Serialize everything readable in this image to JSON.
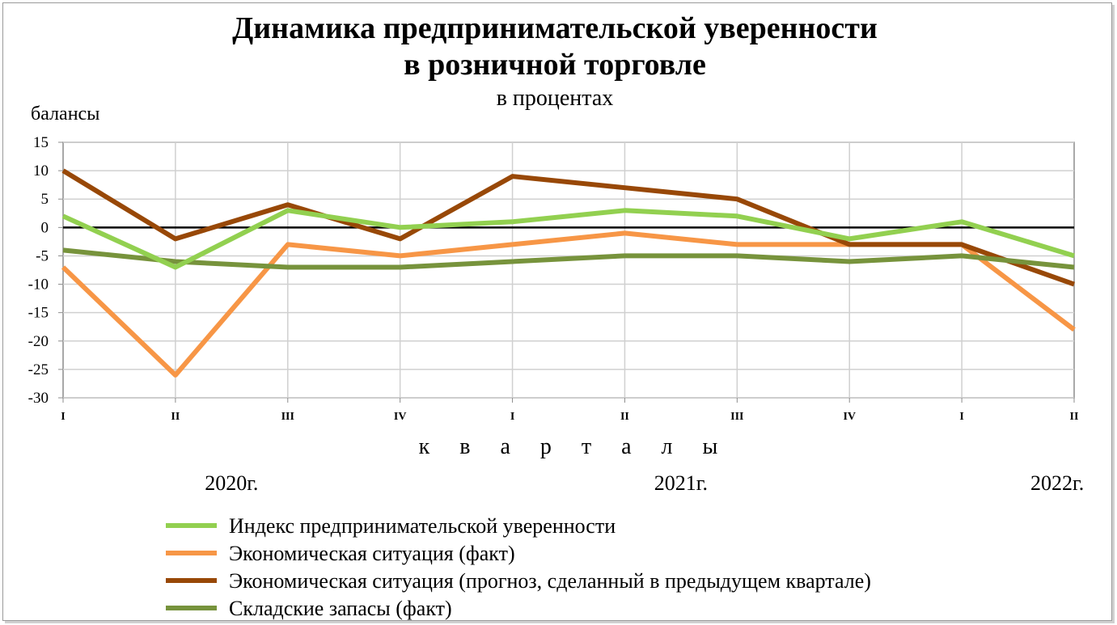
{
  "chart_data": {
    "type": "line",
    "title_line1": "Динамика предпринимательской уверенности",
    "title_line2": "в розничной торговле",
    "subtitle": "в процентах",
    "ylabel": "балансы",
    "xlabel": "к в а р т а л ы",
    "ylim": [
      -30,
      15
    ],
    "yticks": [
      15,
      10,
      5,
      0,
      -5,
      -10,
      -15,
      -20,
      -25,
      -30
    ],
    "categories": [
      "I",
      "II",
      "III",
      "IV",
      "I",
      "II",
      "III",
      "IV",
      "I",
      "II"
    ],
    "year_labels": [
      {
        "label": "2020г.",
        "center_index": 1.5
      },
      {
        "label": "2021г.",
        "center_index": 5.5
      },
      {
        "label": "2022г.",
        "center_index": 8.85
      }
    ],
    "grid": true,
    "legend_position": "bottom",
    "series": [
      {
        "name": "Индекс предпринимательской уверенности",
        "color": "#92d050",
        "values": [
          2,
          -7,
          3,
          0,
          1,
          3,
          2,
          -2,
          1,
          -5
        ]
      },
      {
        "name": "Экономическая ситуация (факт)",
        "color": "#f79646",
        "values": [
          -7,
          -26,
          -3,
          -5,
          -3,
          -1,
          -3,
          -3,
          -3,
          -18
        ]
      },
      {
        "name": "Экономическая ситуация (прогноз, сделанный в предыдущем квартале)",
        "color": "#984807",
        "values": [
          10,
          -2,
          4,
          -2,
          9,
          7,
          5,
          -3,
          -3,
          -10
        ]
      },
      {
        "name": "Складские запасы (факт)",
        "color": "#77933c",
        "values": [
          -4,
          -6,
          -7,
          -7,
          -6,
          -5,
          -5,
          -6,
          -5,
          -7
        ]
      }
    ]
  }
}
